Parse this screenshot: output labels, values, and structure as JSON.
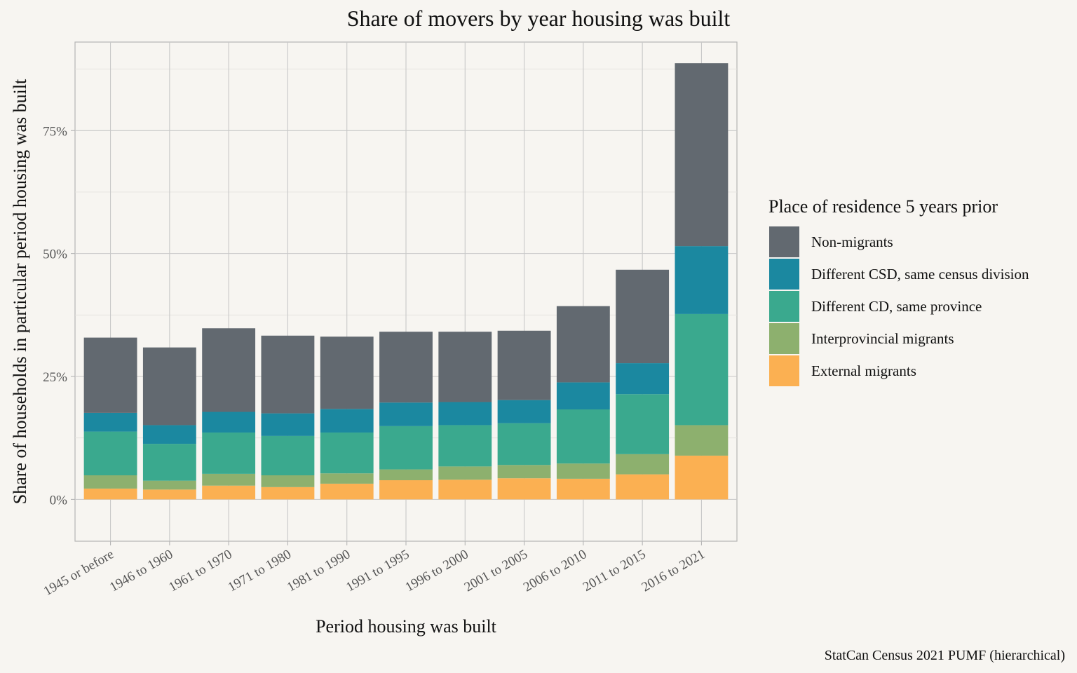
{
  "chart_data": {
    "type": "bar",
    "stacked": true,
    "title": "Share of movers by year housing was built",
    "xlabel": "Period housing was built",
    "ylabel": "Share of households in particular period housing was built",
    "caption": "StatCan Census 2021 PUMF (hierarchical)",
    "ylim": [
      -0.085,
      0.93
    ],
    "yticks": [
      0,
      0.25,
      0.5,
      0.75
    ],
    "ytick_labels": [
      "0%",
      "25%",
      "50%",
      "75%"
    ],
    "grid": true,
    "legend": {
      "title": "Place of residence 5 years prior",
      "position": "right"
    },
    "categories": [
      "1945 or before",
      "1946 to 1960",
      "1961 to 1970",
      "1971 to 1980",
      "1981 to 1990",
      "1991 to 1995",
      "1996 to 2000",
      "2001 to 2005",
      "2006 to 2010",
      "2011 to 2015",
      "2016 to 2021"
    ],
    "series": [
      {
        "name": "External migrants",
        "color": "#fbb052",
        "values": [
          0.022,
          0.02,
          0.028,
          0.025,
          0.032,
          0.039,
          0.04,
          0.043,
          0.042,
          0.051,
          0.089
        ]
      },
      {
        "name": "Interprovincial migrants",
        "color": "#8db06e",
        "values": [
          0.027,
          0.018,
          0.024,
          0.024,
          0.021,
          0.022,
          0.027,
          0.027,
          0.031,
          0.041,
          0.062
        ]
      },
      {
        "name": "Different CD, same province",
        "color": "#3aa98e",
        "values": [
          0.089,
          0.075,
          0.084,
          0.08,
          0.083,
          0.088,
          0.084,
          0.085,
          0.11,
          0.122,
          0.226
        ]
      },
      {
        "name": "Different CSD, same census division",
        "color": "#1b88a0",
        "values": [
          0.038,
          0.038,
          0.042,
          0.046,
          0.048,
          0.048,
          0.047,
          0.047,
          0.055,
          0.063,
          0.138
        ]
      },
      {
        "name": "Non-migrants",
        "color": "#626970",
        "values": [
          0.153,
          0.158,
          0.17,
          0.158,
          0.147,
          0.144,
          0.143,
          0.141,
          0.155,
          0.19,
          0.372
        ]
      }
    ]
  }
}
